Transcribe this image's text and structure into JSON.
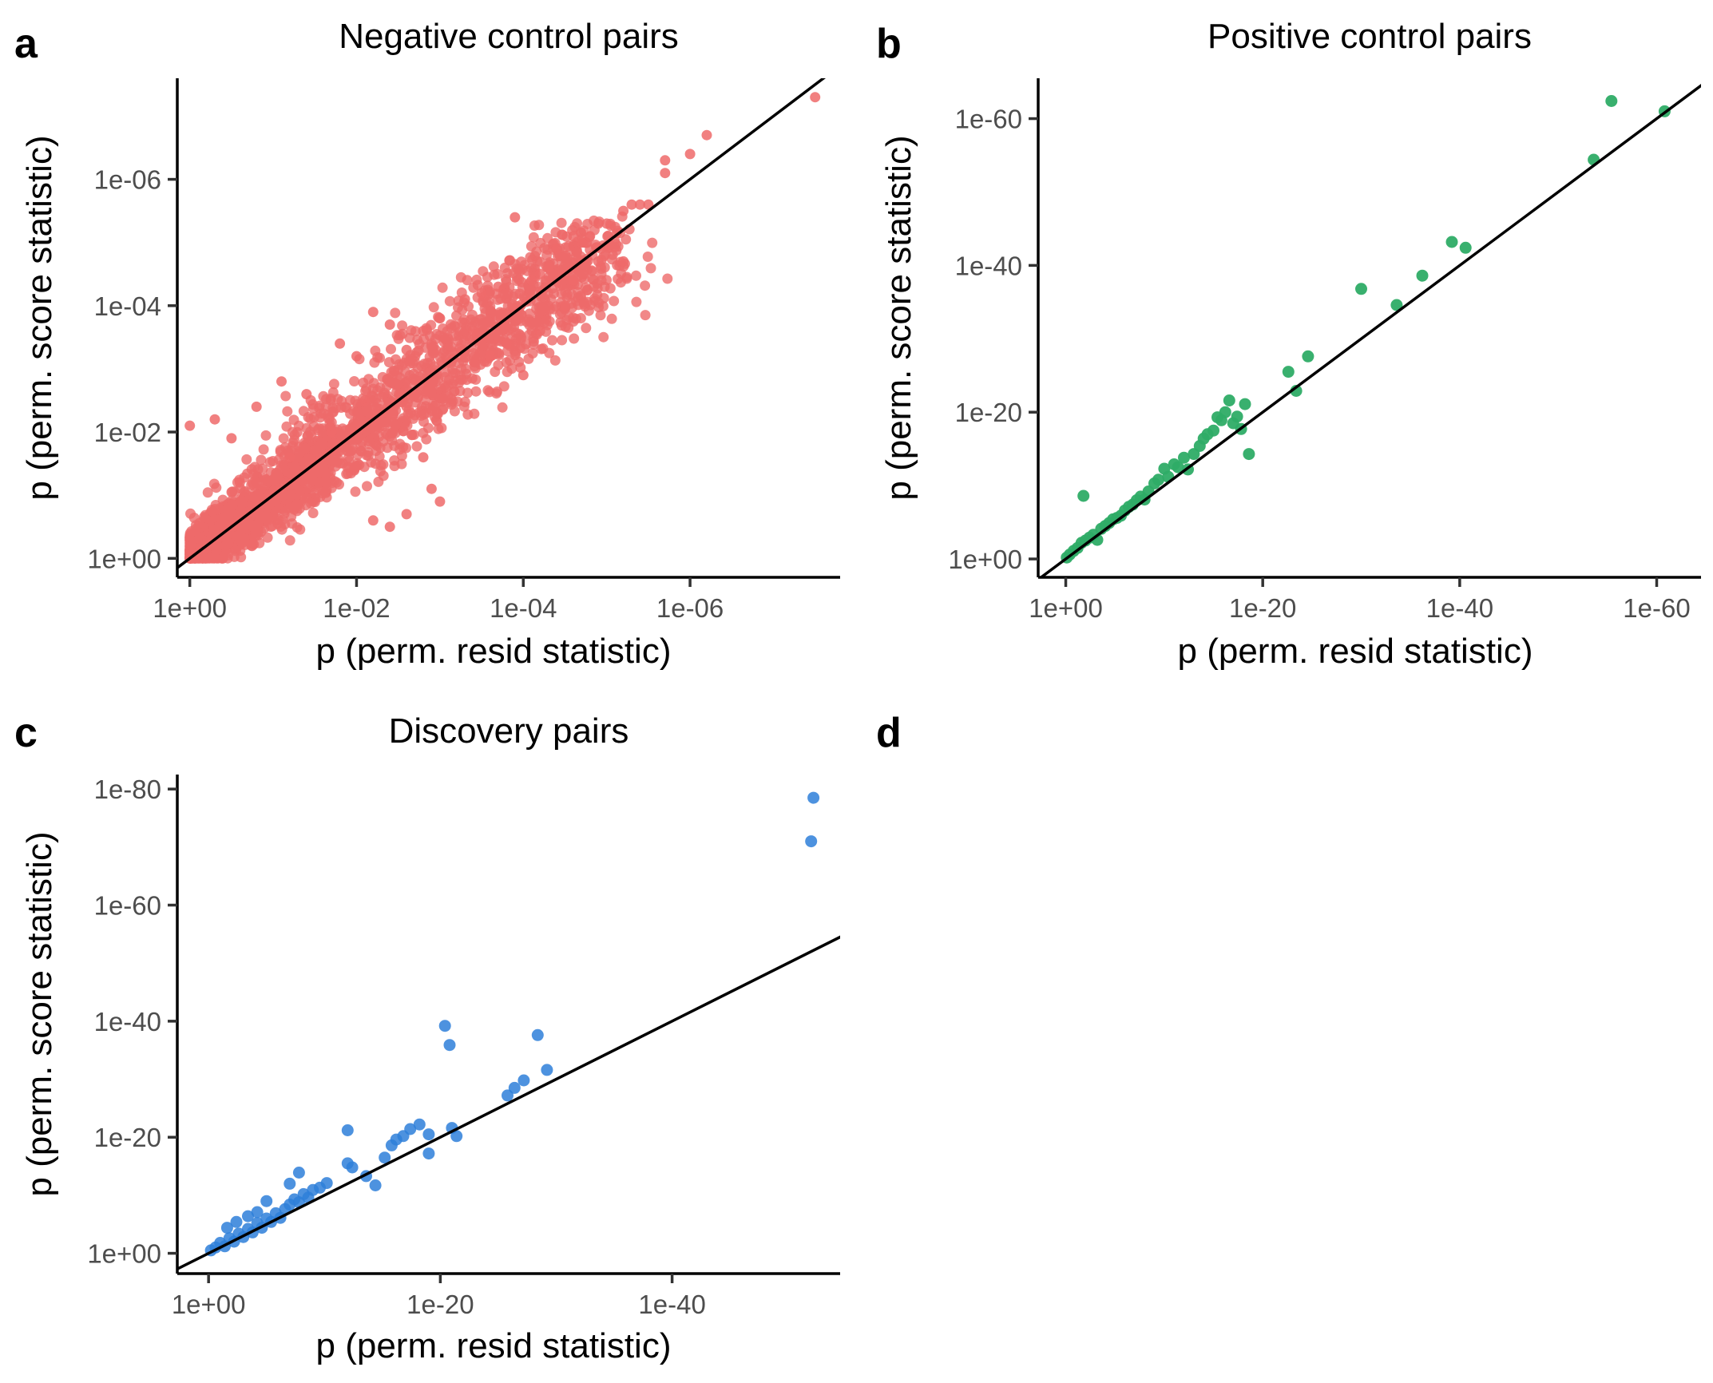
{
  "chart_data": [
    {
      "id": "a",
      "type": "scatter",
      "panel_label": "a",
      "title": "Negative control pairs",
      "xlabel": "p (perm. resid statistic)",
      "ylabel": "p (perm. score statistic)",
      "axis_scale": "-log10 (reversed p)",
      "xlim_exponent": [
        -0.15,
        7.8
      ],
      "ylim_exponent": [
        -0.3,
        7.6
      ],
      "xticks": [
        {
          "exp": 0,
          "label": "1e+00"
        },
        {
          "exp": 2,
          "label": "1e-02"
        },
        {
          "exp": 4,
          "label": "1e-04"
        },
        {
          "exp": 6,
          "label": "1e-06"
        }
      ],
      "yticks": [
        {
          "exp": 0,
          "label": "1e+00"
        },
        {
          "exp": 2,
          "label": "1e-02"
        },
        {
          "exp": 4,
          "label": "1e-04"
        },
        {
          "exp": 6,
          "label": "1e-06"
        }
      ],
      "color": "#ee6a6a",
      "point_note": "very dense cloud of points along the identity line",
      "points": [
        [
          7.5,
          7.3
        ],
        [
          6.2,
          6.7
        ],
        [
          6.0,
          6.4
        ],
        [
          5.7,
          6.3
        ],
        [
          5.7,
          6.1
        ],
        [
          5.5,
          5.6
        ],
        [
          5.4,
          5.6
        ],
        [
          5.3,
          5.6
        ],
        [
          5.2,
          5.5
        ],
        [
          5.0,
          5.3
        ],
        [
          4.9,
          5.3
        ],
        [
          3.9,
          5.4
        ],
        [
          4.8,
          5.1
        ],
        [
          4.7,
          5.0
        ],
        [
          4.6,
          5.1
        ],
        [
          4.4,
          4.9
        ],
        [
          5.2,
          4.7
        ],
        [
          4.3,
          4.6
        ],
        [
          4.2,
          4.5
        ],
        [
          4.1,
          4.4
        ],
        [
          3.7,
          4.3
        ],
        [
          3.5,
          4.2
        ],
        [
          4.5,
          4.0
        ],
        [
          3.3,
          4.1
        ],
        [
          3.4,
          3.6
        ],
        [
          3.0,
          3.8
        ],
        [
          2.8,
          3.6
        ],
        [
          2.4,
          3.7
        ],
        [
          2.2,
          3.9
        ],
        [
          2.6,
          3.3
        ],
        [
          3.6,
          3.2
        ],
        [
          3.1,
          3.1
        ],
        [
          2.0,
          3.2
        ],
        [
          1.8,
          3.4
        ],
        [
          1.1,
          2.8
        ],
        [
          1.4,
          2.6
        ],
        [
          2.6,
          2.4
        ],
        [
          4.0,
          2.9
        ],
        [
          3.8,
          3.4
        ],
        [
          0.8,
          2.4
        ],
        [
          0.3,
          2.2
        ],
        [
          0.5,
          1.9
        ],
        [
          0.0,
          2.1
        ],
        [
          2.8,
          1.6
        ],
        [
          2.9,
          1.1
        ],
        [
          3.0,
          0.9
        ],
        [
          2.6,
          0.7
        ],
        [
          2.4,
          0.5
        ],
        [
          2.2,
          0.6
        ],
        [
          4.2,
          3.6
        ],
        [
          4.6,
          4.4
        ],
        [
          4.9,
          4.7
        ],
        [
          1.2,
          1.6
        ],
        [
          1.7,
          2.0
        ],
        [
          2.1,
          2.5
        ],
        [
          0.6,
          1.2
        ]
      ]
    },
    {
      "id": "b",
      "type": "scatter",
      "panel_label": "b",
      "title": "Positive control pairs",
      "xlabel": "p (perm. resid statistic)",
      "ylabel": "p (perm. score statistic)",
      "axis_scale": "-log10 (reversed p)",
      "xlim_exponent": [
        -2.8,
        64.5
      ],
      "ylim_exponent": [
        -2.5,
        65.5
      ],
      "xticks": [
        {
          "exp": 0,
          "label": "1e+00"
        },
        {
          "exp": 20,
          "label": "1e-20"
        },
        {
          "exp": 40,
          "label": "1e-40"
        },
        {
          "exp": 60,
          "label": "1e-60"
        }
      ],
      "yticks": [
        {
          "exp": 0,
          "label": "1e+00"
        },
        {
          "exp": 20,
          "label": "1e-20"
        },
        {
          "exp": 40,
          "label": "1e-40"
        },
        {
          "exp": 60,
          "label": "1e-60"
        }
      ],
      "color": "#2eac66",
      "points": [
        [
          0.1,
          0.2
        ],
        [
          0.4,
          0.6
        ],
        [
          0.8,
          1.1
        ],
        [
          1.2,
          1.5
        ],
        [
          1.6,
          2.2
        ],
        [
          2.0,
          2.5
        ],
        [
          2.4,
          2.9
        ],
        [
          2.8,
          3.3
        ],
        [
          3.2,
          2.6
        ],
        [
          3.6,
          4.1
        ],
        [
          4.0,
          4.5
        ],
        [
          4.4,
          4.9
        ],
        [
          4.8,
          5.4
        ],
        [
          5.2,
          5.6
        ],
        [
          5.6,
          5.9
        ],
        [
          6.0,
          6.6
        ],
        [
          6.4,
          7.1
        ],
        [
          6.8,
          7.4
        ],
        [
          7.2,
          8.0
        ],
        [
          7.6,
          8.5
        ],
        [
          8.0,
          8.1
        ],
        [
          8.4,
          9.2
        ],
        [
          9.0,
          10.3
        ],
        [
          9.4,
          10.8
        ],
        [
          10.0,
          12.3
        ],
        [
          10.4,
          11.2
        ],
        [
          11.0,
          12.9
        ],
        [
          11.4,
          12.5
        ],
        [
          12.0,
          13.8
        ],
        [
          12.4,
          12.2
        ],
        [
          13.0,
          14.3
        ],
        [
          13.6,
          15.4
        ],
        [
          14.0,
          16.4
        ],
        [
          14.4,
          17.0
        ],
        [
          15.0,
          17.5
        ],
        [
          15.4,
          19.3
        ],
        [
          15.8,
          18.9
        ],
        [
          16.2,
          20.0
        ],
        [
          16.6,
          21.6
        ],
        [
          17.0,
          18.5
        ],
        [
          17.4,
          19.4
        ],
        [
          17.8,
          17.7
        ],
        [
          18.2,
          21.1
        ],
        [
          18.6,
          14.3
        ],
        [
          1.8,
          8.6
        ],
        [
          22.6,
          25.5
        ],
        [
          23.4,
          22.9
        ],
        [
          24.6,
          27.6
        ],
        [
          30.0,
          36.8
        ],
        [
          33.6,
          34.6
        ],
        [
          36.2,
          38.6
        ],
        [
          39.2,
          43.2
        ],
        [
          40.6,
          42.4
        ],
        [
          53.6,
          54.4
        ],
        [
          55.4,
          62.4
        ],
        [
          60.8,
          61.0
        ]
      ]
    },
    {
      "id": "c",
      "type": "scatter",
      "panel_label": "c",
      "title": "Discovery pairs",
      "xlabel": "p (perm. resid statistic)",
      "ylabel": "p (perm. score statistic)",
      "axis_scale": "-log10 (reversed p)",
      "xlim_exponent": [
        -2.7,
        54.5
      ],
      "ylim_exponent": [
        -3.5,
        82.5
      ],
      "xticks": [
        {
          "exp": 0,
          "label": "1e+00"
        },
        {
          "exp": 20,
          "label": "1e-20"
        },
        {
          "exp": 40,
          "label": "1e-40"
        }
      ],
      "yticks": [
        {
          "exp": 0,
          "label": "1e+00"
        },
        {
          "exp": 20,
          "label": "1e-20"
        },
        {
          "exp": 40,
          "label": "1e-40"
        },
        {
          "exp": 60,
          "label": "1e-60"
        },
        {
          "exp": 80,
          "label": "1e-80"
        }
      ],
      "color": "#2e7fd9",
      "points": [
        [
          0.2,
          0.5
        ],
        [
          0.6,
          1.0
        ],
        [
          1.0,
          1.8
        ],
        [
          1.4,
          1.2
        ],
        [
          1.8,
          2.6
        ],
        [
          2.2,
          2.0
        ],
        [
          2.6,
          3.4
        ],
        [
          3.0,
          2.8
        ],
        [
          3.4,
          4.2
        ],
        [
          3.8,
          3.6
        ],
        [
          4.2,
          5.2
        ],
        [
          4.6,
          4.4
        ],
        [
          5.0,
          6.0
        ],
        [
          5.4,
          5.4
        ],
        [
          5.8,
          6.9
        ],
        [
          6.2,
          6.1
        ],
        [
          6.6,
          7.6
        ],
        [
          7.0,
          8.4
        ],
        [
          7.4,
          9.3
        ],
        [
          7.8,
          8.8
        ],
        [
          8.2,
          10.2
        ],
        [
          8.6,
          9.6
        ],
        [
          9.0,
          10.9
        ],
        [
          9.6,
          11.3
        ],
        [
          10.2,
          12.1
        ],
        [
          3.4,
          6.4
        ],
        [
          4.2,
          7.1
        ],
        [
          5.0,
          9.0
        ],
        [
          1.6,
          4.4
        ],
        [
          2.4,
          5.4
        ],
        [
          7.0,
          12.0
        ],
        [
          7.8,
          13.9
        ],
        [
          12.0,
          15.5
        ],
        [
          12.4,
          14.8
        ],
        [
          12.0,
          21.2
        ],
        [
          13.6,
          13.3
        ],
        [
          14.4,
          11.7
        ],
        [
          15.2,
          16.5
        ],
        [
          15.8,
          18.6
        ],
        [
          16.2,
          19.6
        ],
        [
          16.8,
          20.2
        ],
        [
          17.4,
          21.4
        ],
        [
          18.2,
          22.2
        ],
        [
          19.0,
          20.5
        ],
        [
          21.0,
          21.6
        ],
        [
          19.0,
          17.2
        ],
        [
          21.4,
          20.2
        ],
        [
          20.4,
          39.2
        ],
        [
          20.8,
          35.9
        ],
        [
          25.8,
          27.2
        ],
        [
          26.4,
          28.5
        ],
        [
          27.2,
          29.8
        ],
        [
          28.4,
          37.6
        ],
        [
          29.2,
          31.6
        ],
        [
          52.0,
          71.0
        ],
        [
          52.2,
          78.5
        ]
      ]
    },
    {
      "id": "d",
      "type": "scatter",
      "panel_label": "d",
      "title": "",
      "points": []
    }
  ]
}
